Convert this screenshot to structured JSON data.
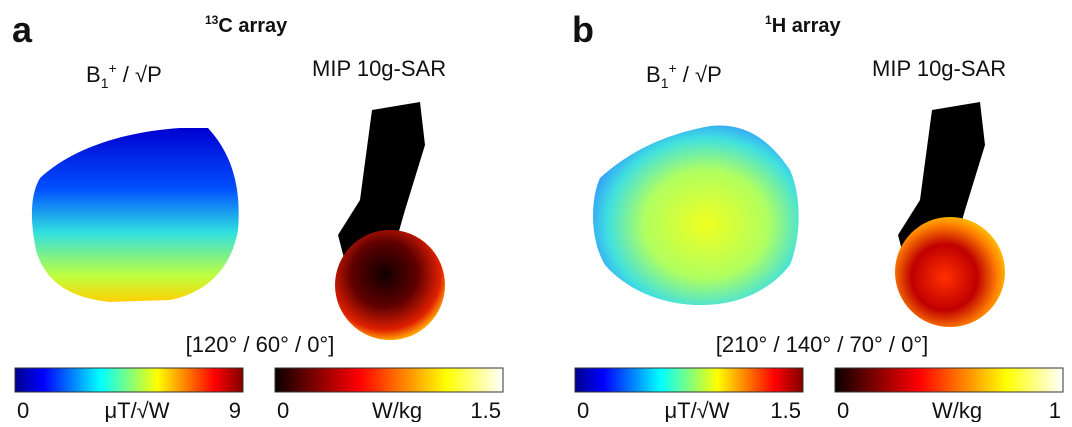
{
  "panels": [
    {
      "letter": "a",
      "title_sup": "13",
      "title": "C  array",
      "b1_label": {
        "base": "B",
        "sub": "1",
        "sup": "+",
        "rest": " / √P"
      },
      "sar_label": "MIP 10g-SAR",
      "phases": "[120° / 60° / 0°]",
      "b1_colorbar": {
        "min": "0",
        "unit": "μT/√W",
        "max": "9"
      },
      "sar_colorbar": {
        "min": "0",
        "unit": "W/kg",
        "max": "1.5"
      }
    },
    {
      "letter": "b",
      "title_sup": "1",
      "title": "H  array",
      "b1_label": {
        "base": "B",
        "sub": "1",
        "sup": "+",
        "rest": " / √P"
      },
      "sar_label": "MIP 10g-SAR",
      "phases": "[210° / 140° / 70° / 0°]",
      "b1_colorbar": {
        "min": "0",
        "unit": "μT/√W",
        "max": "1.5"
      },
      "sar_colorbar": {
        "min": "0",
        "unit": "W/kg",
        "max": "1"
      }
    }
  ]
}
